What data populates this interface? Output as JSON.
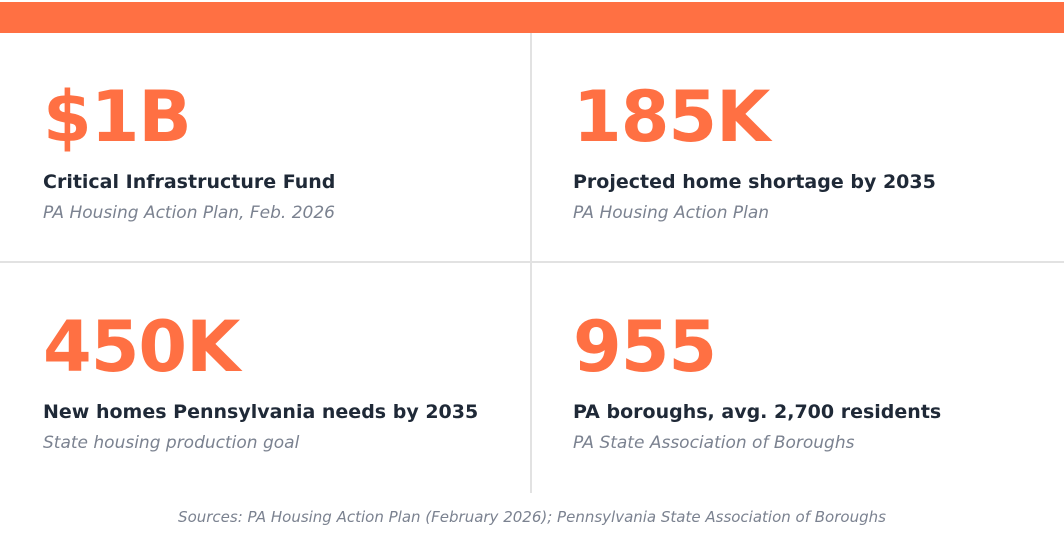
{
  "stats": [
    {
      "value": "$1B",
      "label": "Critical Infrastructure Fund",
      "source": "PA Housing Action Plan, Feb. 2026"
    },
    {
      "value": "185K",
      "label": "Projected home shortage by 2035",
      "source": "PA Housing Action Plan"
    },
    {
      "value": "450K",
      "label": "New homes Pennsylvania needs by 2035",
      "source": "State housing production goal"
    },
    {
      "value": "955",
      "label": "PA boroughs, avg. 2,700 residents",
      "source": "PA State Association of Boroughs"
    }
  ],
  "footer": "Sources: PA Housing Action Plan (February 2026); Pennsylvania State Association of Boroughs"
}
